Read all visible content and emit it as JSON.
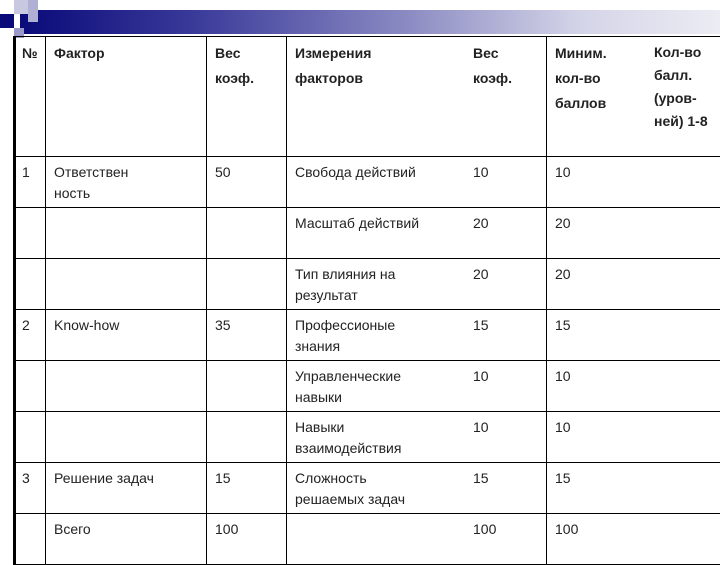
{
  "header": [
    "№",
    "Фактор",
    "Вес коэф.",
    "Измерения факторов",
    "Вес коэф.",
    "Миним. кол-во баллов",
    "Кол-во балл. (уров-ней) 1-8"
  ],
  "header_lines": {
    "no": "№",
    "factor": "Фактор",
    "weight1": [
      "Вес",
      "коэф."
    ],
    "measure": [
      "Измерения",
      "факторов"
    ],
    "weight2": [
      "Вес",
      "коэф."
    ],
    "min": [
      "Миним.",
      "кол-во",
      "баллов"
    ],
    "count": [
      "Кол-во",
      "балл.",
      "(уров-",
      "ней)",
      "1-8"
    ]
  },
  "rows": [
    {
      "no": "1",
      "factor": "Ответствен ность",
      "weight": "50",
      "measure": "Свобода действий",
      "weight2": "10",
      "min": "10",
      "count": ""
    },
    {
      "no": "",
      "factor": "",
      "weight": "",
      "measure": "Масштаб действий",
      "weight2": "20",
      "min": "20",
      "count": ""
    },
    {
      "no": "",
      "factor": "",
      "weight": "",
      "measure": "Тип влияния на результат",
      "weight2": "20",
      "min": "20",
      "count": ""
    },
    {
      "no": "2",
      "factor": "Know-how",
      "weight": "35",
      "measure": "Профессионые знания",
      "weight2": "15",
      "min": "15",
      "count": ""
    },
    {
      "no": "",
      "factor": "",
      "weight": "",
      "measure": "Управленческие навыки",
      "weight2": "10",
      "min": "10",
      "count": ""
    },
    {
      "no": "",
      "factor": "",
      "weight": "",
      "measure": "Навыки взаимодействия",
      "weight2": "10",
      "min": "10",
      "count": ""
    },
    {
      "no": "3",
      "factor": "Решение  задач",
      "weight": "15",
      "measure": "Сложность решаемых задач",
      "weight2": "15",
      "min": "15",
      "count": ""
    },
    {
      "no": "",
      "factor": "Всего",
      "weight": "100",
      "measure": "",
      "weight2": "100",
      "min": "100",
      "count": ""
    }
  ]
}
